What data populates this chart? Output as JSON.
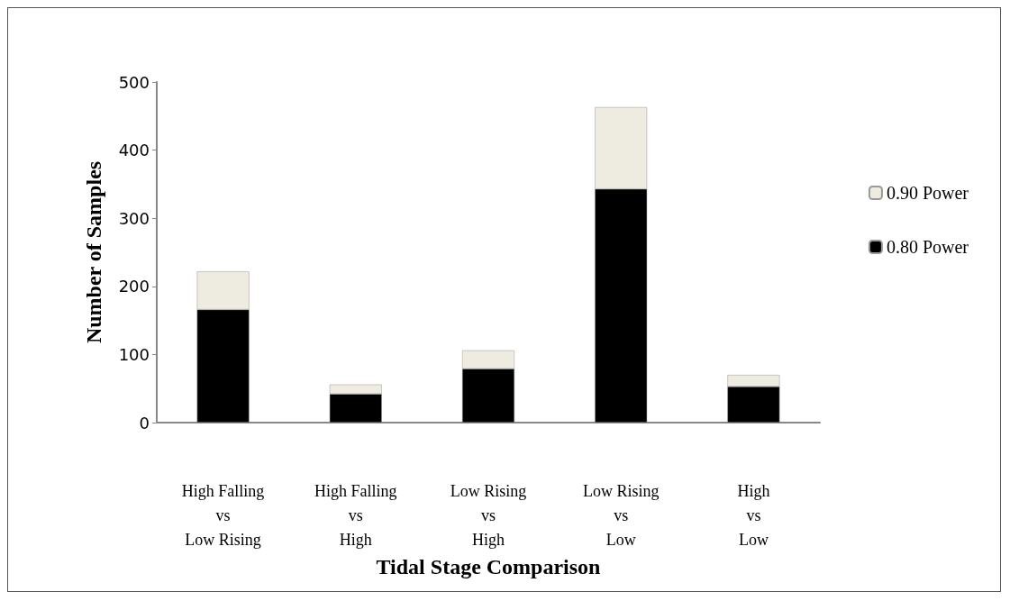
{
  "chart_data": {
    "type": "bar",
    "stacked": true,
    "xlabel": "Tidal Stage Comparison",
    "ylabel": "Number of Samples",
    "categories": [
      "High Falling\nvs\nLow Rising",
      "High Falling\nvs\nHigh",
      "Low Rising\nvs\nHigh",
      "Low Rising\nvs\nLow",
      "High\nvs\nLow"
    ],
    "series": [
      {
        "name": "0.80 Power",
        "color": "#000000",
        "values": [
          166,
          42,
          79,
          343,
          53
        ]
      },
      {
        "name": "0.90 Power",
        "color": "#eeece1",
        "values": [
          56,
          14,
          27,
          120,
          17
        ]
      }
    ],
    "ylim": [
      0,
      500
    ],
    "yticks": [
      0,
      100,
      200,
      300,
      400,
      500
    ],
    "grid": false,
    "legend": "right"
  }
}
